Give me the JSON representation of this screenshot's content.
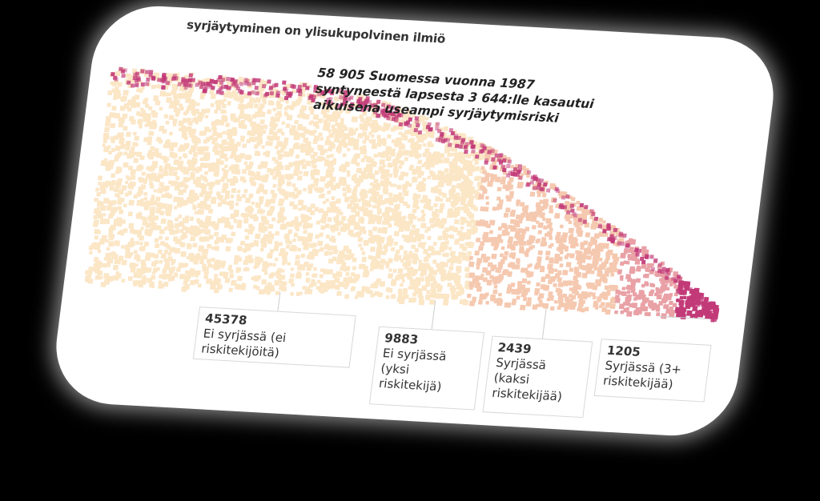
{
  "title": "syrjäytyminen on ylisukupolvinen ilmiö",
  "annotation": [
    "58 905 Suomessa vuonna 1987",
    "syntyneestä lapsesta 3 644:lle kasautui",
    "aikuisena useampi syrjäytymisriski"
  ],
  "chart_data": {
    "type": "scatter",
    "title": "syrjäytyminen on ylisukupolvinen ilmiö",
    "total_children": 58905,
    "birth_year": 1987,
    "multi_risk_count": 3644,
    "groups": [
      {
        "value": 45378,
        "label": "Ei syrjässä (ei riskitekijöitä)",
        "color": "#fbe6c6"
      },
      {
        "value": 9883,
        "label": "Ei syrjässä (yksi riskitekijä)",
        "color": "#f5c9b0"
      },
      {
        "value": 2439,
        "label": "Syrjässä (kaksi riskitekijää)",
        "color": "#e9a1a6"
      },
      {
        "value": 1205,
        "label": "Syrjässä (3+ riskitekijää)",
        "color": "#c23a78"
      }
    ],
    "legend_placement": "bottom"
  },
  "legend": [
    {
      "num": "45378",
      "lines": [
        "Ei syrjässä (ei",
        "riskitekijöitä)"
      ]
    },
    {
      "num": "9883",
      "lines": [
        "Ei syrjässä",
        "(yksi",
        "riskitekijä)"
      ]
    },
    {
      "num": "2439",
      "lines": [
        "Syrjässä",
        "(kaksi",
        "riskitekijää)"
      ]
    },
    {
      "num": "1205",
      "lines": [
        "Syrjässä (3+",
        "riskitekijää)"
      ]
    }
  ]
}
